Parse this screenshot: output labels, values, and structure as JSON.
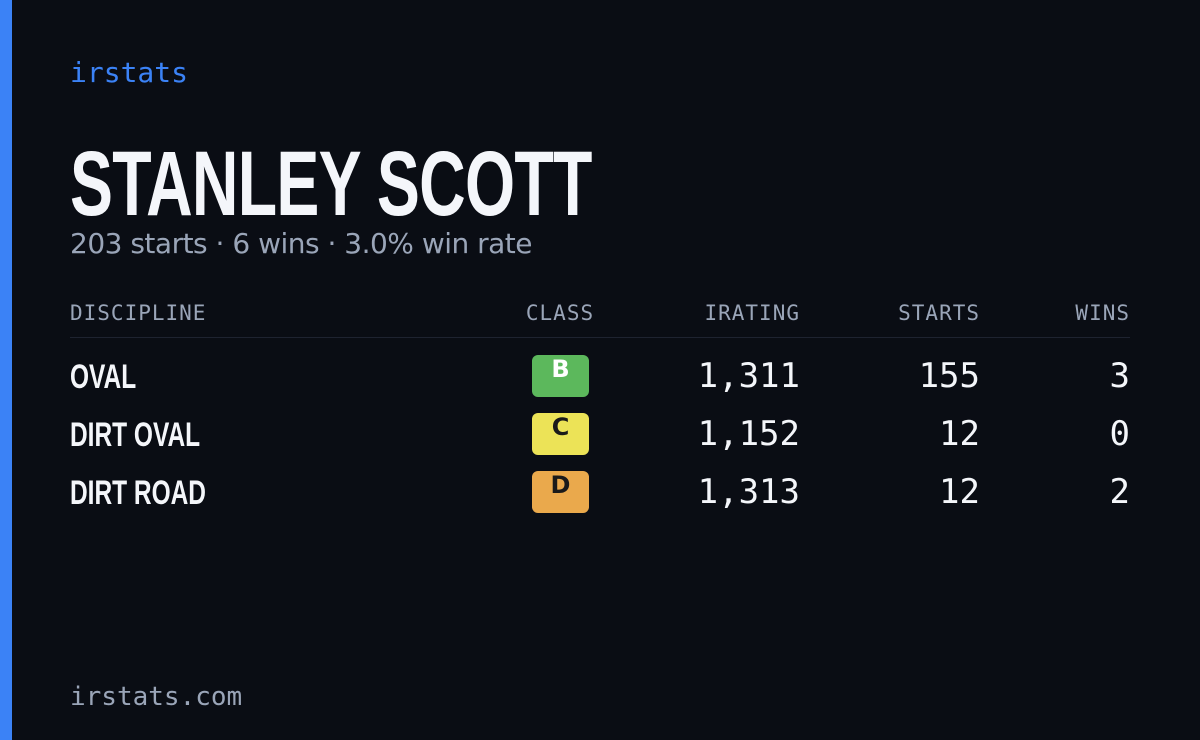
{
  "brand": "irstats",
  "driver": {
    "name": "STANLEY SCOTT",
    "summary": "203 starts · 6 wins · 3.0% win rate"
  },
  "table": {
    "headers": [
      "DISCIPLINE",
      "CLASS",
      "IRATING",
      "STARTS",
      "WINS"
    ],
    "rows": [
      [
        "OVAL",
        "B",
        "1,311",
        "155",
        "3"
      ],
      [
        "DIRT OVAL",
        "C",
        "1,152",
        "12",
        "0"
      ],
      [
        "DIRT ROAD",
        "D",
        "1,313",
        "12",
        "2"
      ]
    ],
    "class_colors": {
      "B": "#5cb85c",
      "C": "#ece357",
      "D": "#eaa94c"
    }
  },
  "footer": "irstats.com"
}
